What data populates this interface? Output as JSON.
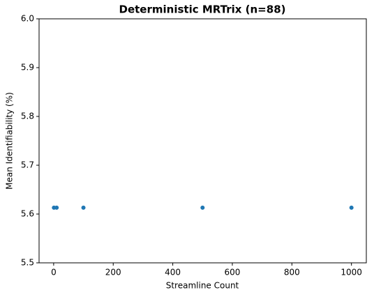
{
  "chart_data": {
    "type": "scatter",
    "title": "Deterministic MRTrix (n=88)",
    "x_label": "Streamline Count",
    "y_label": "Mean Identifiability (%)",
    "series": [
      {
        "x": [
          1,
          10,
          100,
          500,
          1000
        ],
        "values": [
          5.613,
          5.613,
          5.613,
          5.613,
          5.613
        ],
        "color": "#1f77b4"
      }
    ],
    "xlim": [
      -48.95,
      1049.95
    ],
    "xticks": [
      0,
      200,
      400,
      600,
      800,
      1000
    ],
    "ylim": [
      5.5,
      6.0
    ],
    "yticks": [
      5.5,
      5.6,
      5.7,
      5.8,
      5.9,
      {
        "value": 6.0,
        "label": "6.0"
      }
    ]
  }
}
